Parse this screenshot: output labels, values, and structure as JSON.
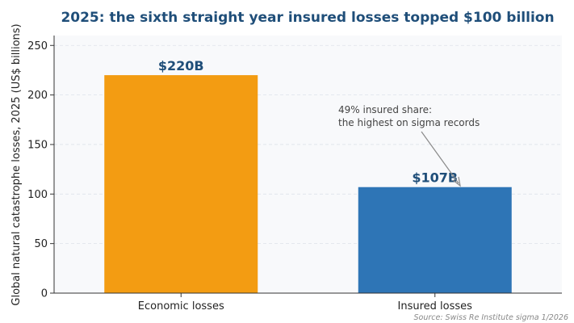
{
  "chart_data": {
    "type": "bar",
    "title": "2025: the sixth straight year insured losses topped $100 billion",
    "ylabel": "Global natural catastrophe losses, 2025 (US$ billions)",
    "xlabel": "",
    "ylim": [
      0,
      260
    ],
    "yticks": [
      0,
      50,
      100,
      150,
      200,
      250
    ],
    "grid": true,
    "categories": [
      "Economic losses",
      "Insured losses"
    ],
    "values": [
      220,
      107
    ],
    "bar_colors": [
      "#f39c12",
      "#2e75b6"
    ],
    "data_labels": [
      "$220B",
      "$107B"
    ],
    "annotation": {
      "lines": [
        "49% insured share:",
        "the highest on sigma records"
      ],
      "target_category": "Insured losses"
    },
    "source": "Source: Swiss Re Institute sigma 1/2026"
  },
  "colors": {
    "title": "#1f4e79",
    "plot_background": "#f8f9fb",
    "grid": "#dde3ea",
    "axis": "#333333"
  }
}
